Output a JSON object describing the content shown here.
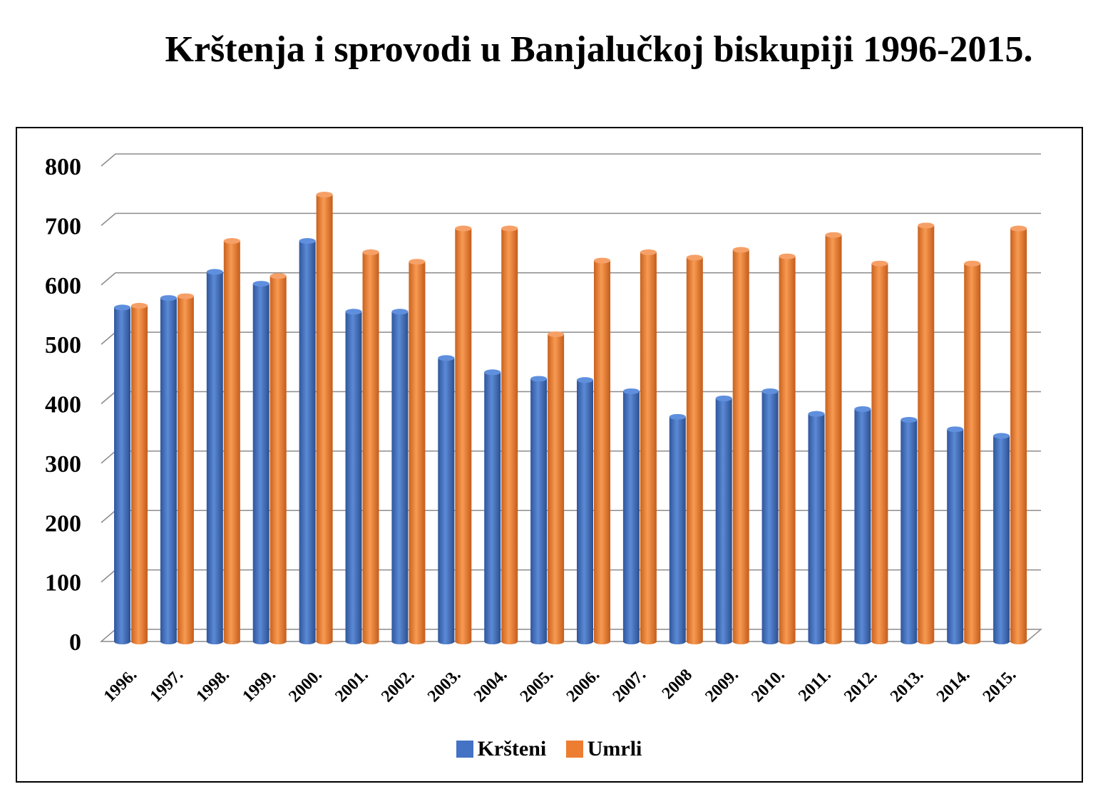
{
  "title": "Krštenja i sprovodi u Banjalučkoj biskupiji 1996-2015.",
  "chart_data": {
    "type": "bar",
    "title": "Krštenja i sprovodi u Banjalučkoj biskupiji 1996-2015.",
    "categories": [
      "1996.",
      "1997.",
      "1998.",
      "1999.",
      "2000.",
      "2001.",
      "2002.",
      "2003.",
      "2004.",
      "2005.",
      "2006.",
      "2007.",
      "2008",
      "2009.",
      "2010.",
      "2011.",
      "2012.",
      "2013.",
      "2014.",
      "2015."
    ],
    "series": [
      {
        "name": "Kršteni",
        "color": "#4472C4",
        "values": [
          562,
          578,
          622,
          602,
          674,
          555,
          555,
          477,
          453,
          442,
          440,
          421,
          378,
          409,
          421,
          383,
          391,
          373,
          357,
          346
        ]
      },
      {
        "name": "Umrli",
        "color": "#ED7D31",
        "values": [
          565,
          581,
          674,
          615,
          752,
          655,
          639,
          695,
          695,
          517,
          641,
          655,
          646,
          659,
          648,
          684,
          636,
          700,
          636,
          695
        ]
      }
    ],
    "ylim": [
      0,
      800
    ],
    "yticks": [
      "0",
      "100",
      "200",
      "300",
      "400",
      "500",
      "600",
      "700",
      "800"
    ],
    "grid": true,
    "legend": "bottom"
  }
}
